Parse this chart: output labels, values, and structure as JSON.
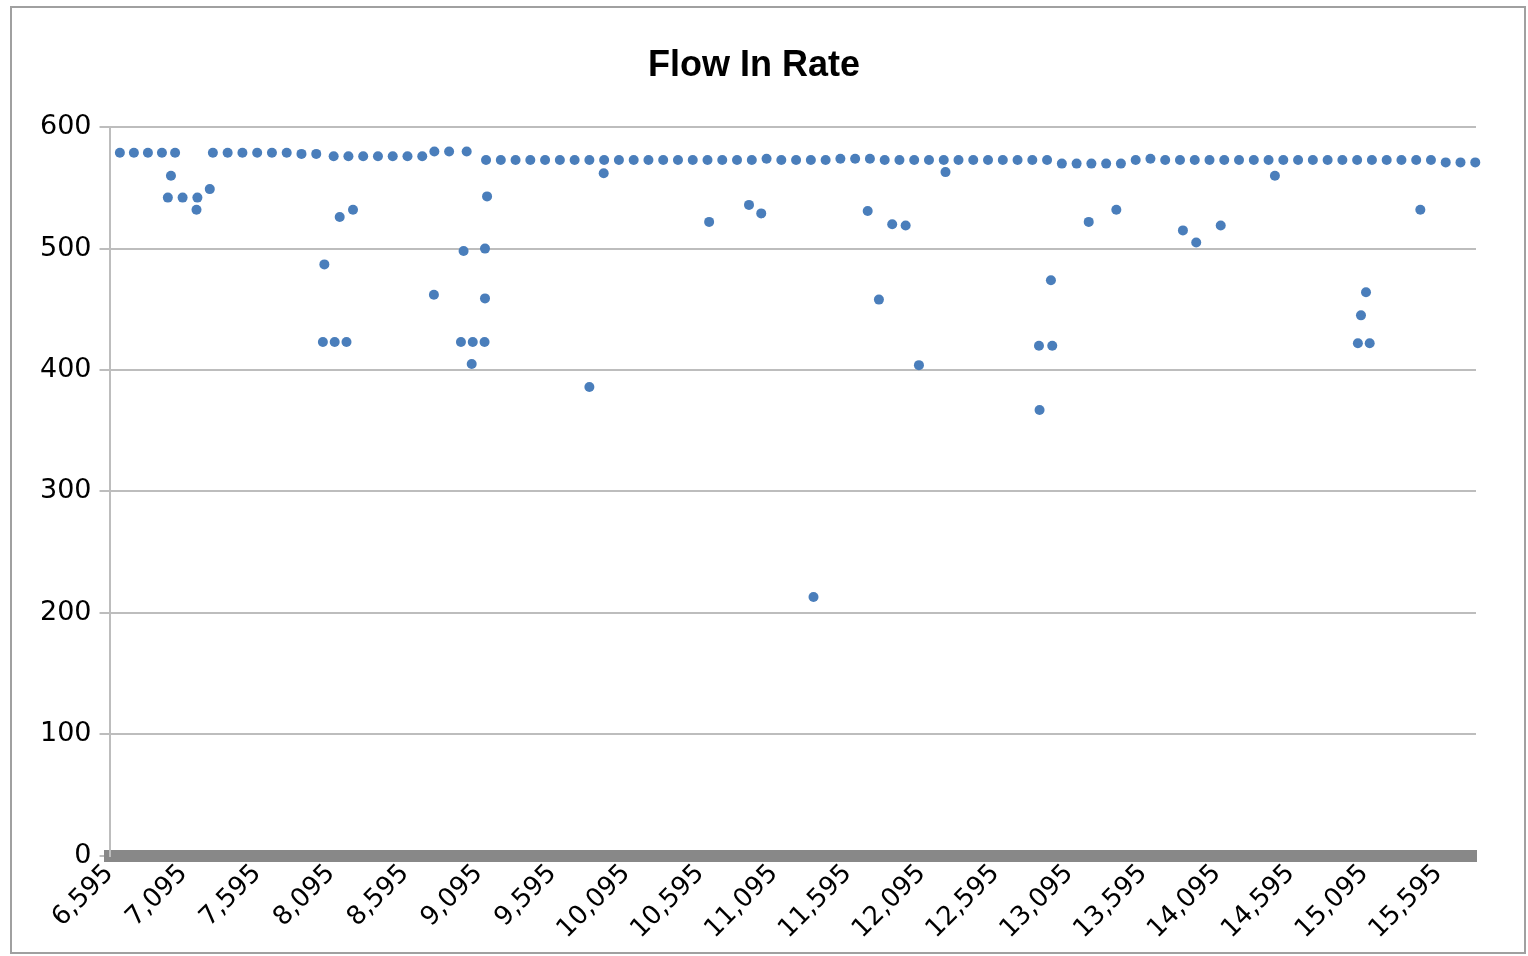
{
  "chart_data": {
    "type": "scatter",
    "title": "Flow In Rate",
    "series": [
      {
        "color": "#4a7ebb",
        "x": [
          6665,
          6760,
          6855,
          6950,
          7039,
          7011,
          6990,
          7090,
          7190,
          7184,
          7274,
          7295,
          7395,
          7495,
          7595,
          7695,
          7795,
          7895,
          7995,
          8040,
          8120,
          8200,
          8050,
          8154,
          8244,
          8113,
          8213,
          8313,
          8413,
          8513,
          8613,
          8713,
          8795,
          8895,
          9014,
          8792,
          8993,
          9048,
          8975,
          9055,
          9135,
          9138,
          9138,
          9152,
          9145,
          9245,
          9345,
          9445,
          9545,
          9645,
          9745,
          9845,
          9945,
          10045,
          10145,
          10245,
          10345,
          10445,
          10545,
          10645,
          10745,
          10845,
          10945,
          11045,
          11145,
          11245,
          11345,
          11445,
          11545,
          11645,
          11745,
          11845,
          11945,
          12045,
          12145,
          12245,
          12345,
          12445,
          12545,
          12645,
          12745,
          12845,
          12945,
          13045,
          13145,
          13245,
          13345,
          13445,
          13545,
          13645,
          13745,
          13845,
          13945,
          14045,
          14145,
          14245,
          14345,
          14445,
          14545,
          14645,
          14745,
          14845,
          14945,
          15045,
          15145,
          15245,
          15345,
          15445,
          15545,
          15645,
          15745,
          15845,
          9942,
          9845,
          10656,
          10926,
          11009,
          11730,
          11806,
          11896,
          11987,
          12077,
          11363,
          12257,
          12894,
          12971,
          12890,
          12980,
          13227,
          13414,
          13865,
          13955,
          14121,
          14488,
          15071,
          15105,
          15050,
          15130,
          15473
        ],
        "values": [
          579,
          579,
          579,
          579,
          579,
          560,
          542,
          542,
          542,
          532,
          549,
          579,
          579,
          579,
          579,
          579,
          579,
          578,
          578,
          423,
          423,
          423,
          487,
          526,
          532,
          576,
          576,
          576,
          576,
          576,
          576,
          576,
          580,
          580,
          580,
          462,
          498,
          405,
          423,
          423,
          423,
          500,
          459,
          543,
          573,
          573,
          573,
          573,
          573,
          573,
          573,
          573,
          573,
          573,
          573,
          573,
          573,
          573,
          573,
          573,
          573,
          573,
          573,
          574,
          573,
          573,
          573,
          573,
          574,
          574,
          574,
          573,
          573,
          573,
          573,
          573,
          573,
          573,
          573,
          573,
          573,
          573,
          573,
          570,
          570,
          570,
          570,
          570,
          573,
          574,
          573,
          573,
          573,
          573,
          573,
          573,
          573,
          573,
          573,
          573,
          573,
          573,
          573,
          573,
          573,
          573,
          573,
          573,
          573,
          571,
          571,
          571,
          562,
          386,
          522,
          536,
          529,
          531,
          458,
          520,
          519,
          404,
          213,
          563,
          367,
          474,
          420,
          420,
          522,
          532,
          515,
          505,
          519,
          560,
          445,
          464,
          422,
          422,
          532
        ]
      }
    ],
    "xlim": [
      6595,
      15850
    ],
    "xticks": [
      {
        "value": 6595,
        "label": "6,595"
      },
      {
        "value": 7095,
        "label": "7,095"
      },
      {
        "value": 7595,
        "label": "7,595"
      },
      {
        "value": 8095,
        "label": "8,095"
      },
      {
        "value": 8595,
        "label": "8,595"
      },
      {
        "value": 9095,
        "label": "9,095"
      },
      {
        "value": 9595,
        "label": "9,595"
      },
      {
        "value": 10095,
        "label": "10,095"
      },
      {
        "value": 10595,
        "label": "10,595"
      },
      {
        "value": 11095,
        "label": "11,095"
      },
      {
        "value": 11595,
        "label": "11,595"
      },
      {
        "value": 12095,
        "label": "12,095"
      },
      {
        "value": 12595,
        "label": "12,595"
      },
      {
        "value": 13095,
        "label": "13,095"
      },
      {
        "value": 13595,
        "label": "13,595"
      },
      {
        "value": 14095,
        "label": "14,095"
      },
      {
        "value": 14595,
        "label": "14,595"
      },
      {
        "value": 15095,
        "label": "15,095"
      },
      {
        "value": 15595,
        "label": "15,595"
      }
    ],
    "ylim": [
      0,
      600
    ],
    "yticks": [
      0,
      100,
      200,
      300,
      400,
      500,
      600
    ],
    "grid": "y",
    "legend": false,
    "marker": "circle"
  }
}
